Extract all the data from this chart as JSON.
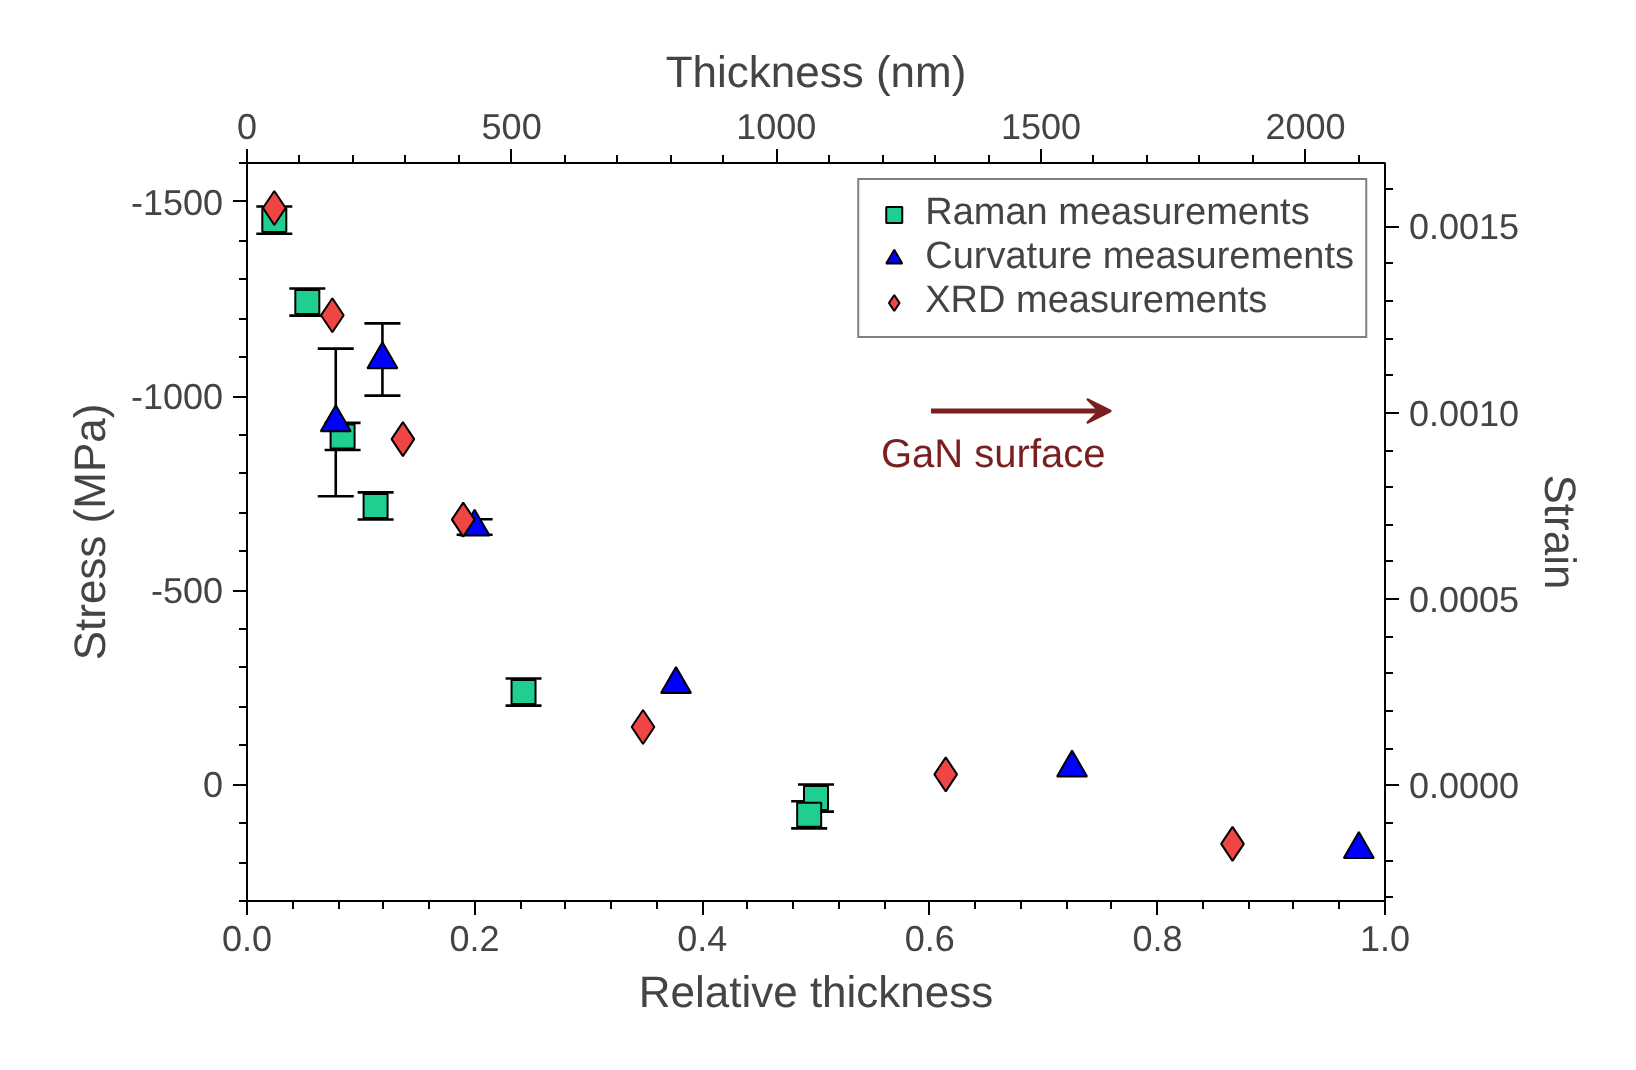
{
  "chart_data": {
    "type": "scatter",
    "xlabel": "Relative thickness",
    "ylabel": "Stress (MPa)",
    "y2label": "Strain",
    "x2label": "Thickness (nm)",
    "xlim": [
      0,
      1
    ],
    "xticks": [
      {
        "value": 0,
        "label": "0.0"
      },
      0.2,
      0.4,
      0.6,
      0.8,
      {
        "value": 1,
        "label": "1.0"
      }
    ],
    "ylim": [
      300,
      -1600
    ],
    "yticks": [
      -1500,
      -1000,
      -500,
      0
    ],
    "y2lim": [
      -0.00031,
      0.00167
    ],
    "y2ticks": [
      0.0015,
      {
        "value": 0.001,
        "label": "0.0010"
      },
      0.0005,
      {
        "value": 0,
        "label": "0.0000"
      }
    ],
    "x2lim": [
      0,
      2150
    ],
    "x2ticks": [
      0,
      500,
      1000,
      1500,
      2000
    ],
    "legend": "top right",
    "grid": false,
    "annotations": [
      "GaN surface"
    ],
    "series": [
      {
        "name": "Raman measurements",
        "color": "#1fcf8f",
        "marker": "square",
        "x": [
          0.024,
          0.053,
          0.084,
          0.113,
          0.243,
          0.5,
          0.494
        ],
        "values": [
          -1453,
          -1242,
          -896,
          -717,
          -238,
          35,
          78
        ],
        "errors": [
          35,
          35,
          35,
          35,
          35,
          35,
          35
        ]
      },
      {
        "name": "Curvature measurements",
        "color": "#0000ff",
        "marker": "triangle",
        "x": [
          0.078,
          0.119,
          0.2,
          0.377,
          0.725,
          0.977
        ],
        "values": [
          -932,
          -1094,
          -663,
          -258,
          -43,
          167
        ],
        "errors": [
          190,
          93,
          20,
          null,
          null,
          null
        ]
      },
      {
        "name": "XRD measurements",
        "color": "#f04545",
        "marker": "diamond",
        "x": [
          0.024,
          0.075,
          0.137,
          0.19,
          0.348,
          0.614,
          0.866
        ],
        "values": [
          -1484,
          -1208,
          -889,
          -682,
          -148,
          -26,
          153
        ]
      }
    ]
  }
}
